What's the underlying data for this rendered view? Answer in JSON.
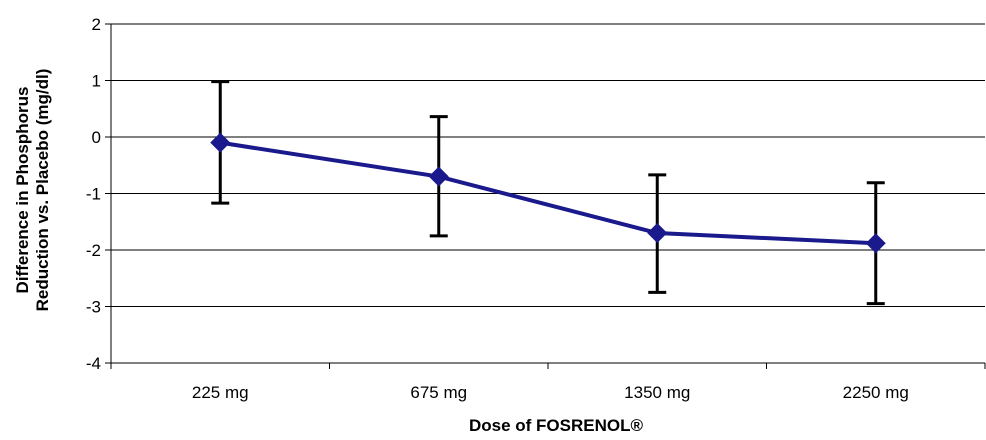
{
  "chart_data": {
    "type": "line",
    "title": "",
    "xlabel": "Dose of FOSRENOL®",
    "ylabel_lines": [
      "Difference in Phosphorus",
      "Reduction vs. Placebo (mg/dl)"
    ],
    "categories": [
      "225 mg",
      "675 mg",
      "1350 mg",
      "2250 mg"
    ],
    "series": [
      {
        "values": [
          -0.1,
          -0.7,
          -1.7,
          -1.88
        ],
        "error_low": [
          -1.17,
          -1.75,
          -2.75,
          -2.95
        ],
        "error_high": [
          0.98,
          0.36,
          -0.67,
          -0.81
        ],
        "marker": "diamond"
      }
    ],
    "ylim": [
      -4,
      2
    ],
    "yticks": [
      "2",
      "1",
      "0",
      "-1",
      "-2",
      "-3",
      "-4"
    ],
    "ytick_values": [
      2,
      1,
      0,
      -1,
      -2,
      -3,
      -4
    ],
    "grid": true,
    "colors": {
      "line": "#1a1a8c",
      "marker": "#1a1a8c",
      "error_bar": "#000000",
      "grid": "#000000"
    }
  }
}
